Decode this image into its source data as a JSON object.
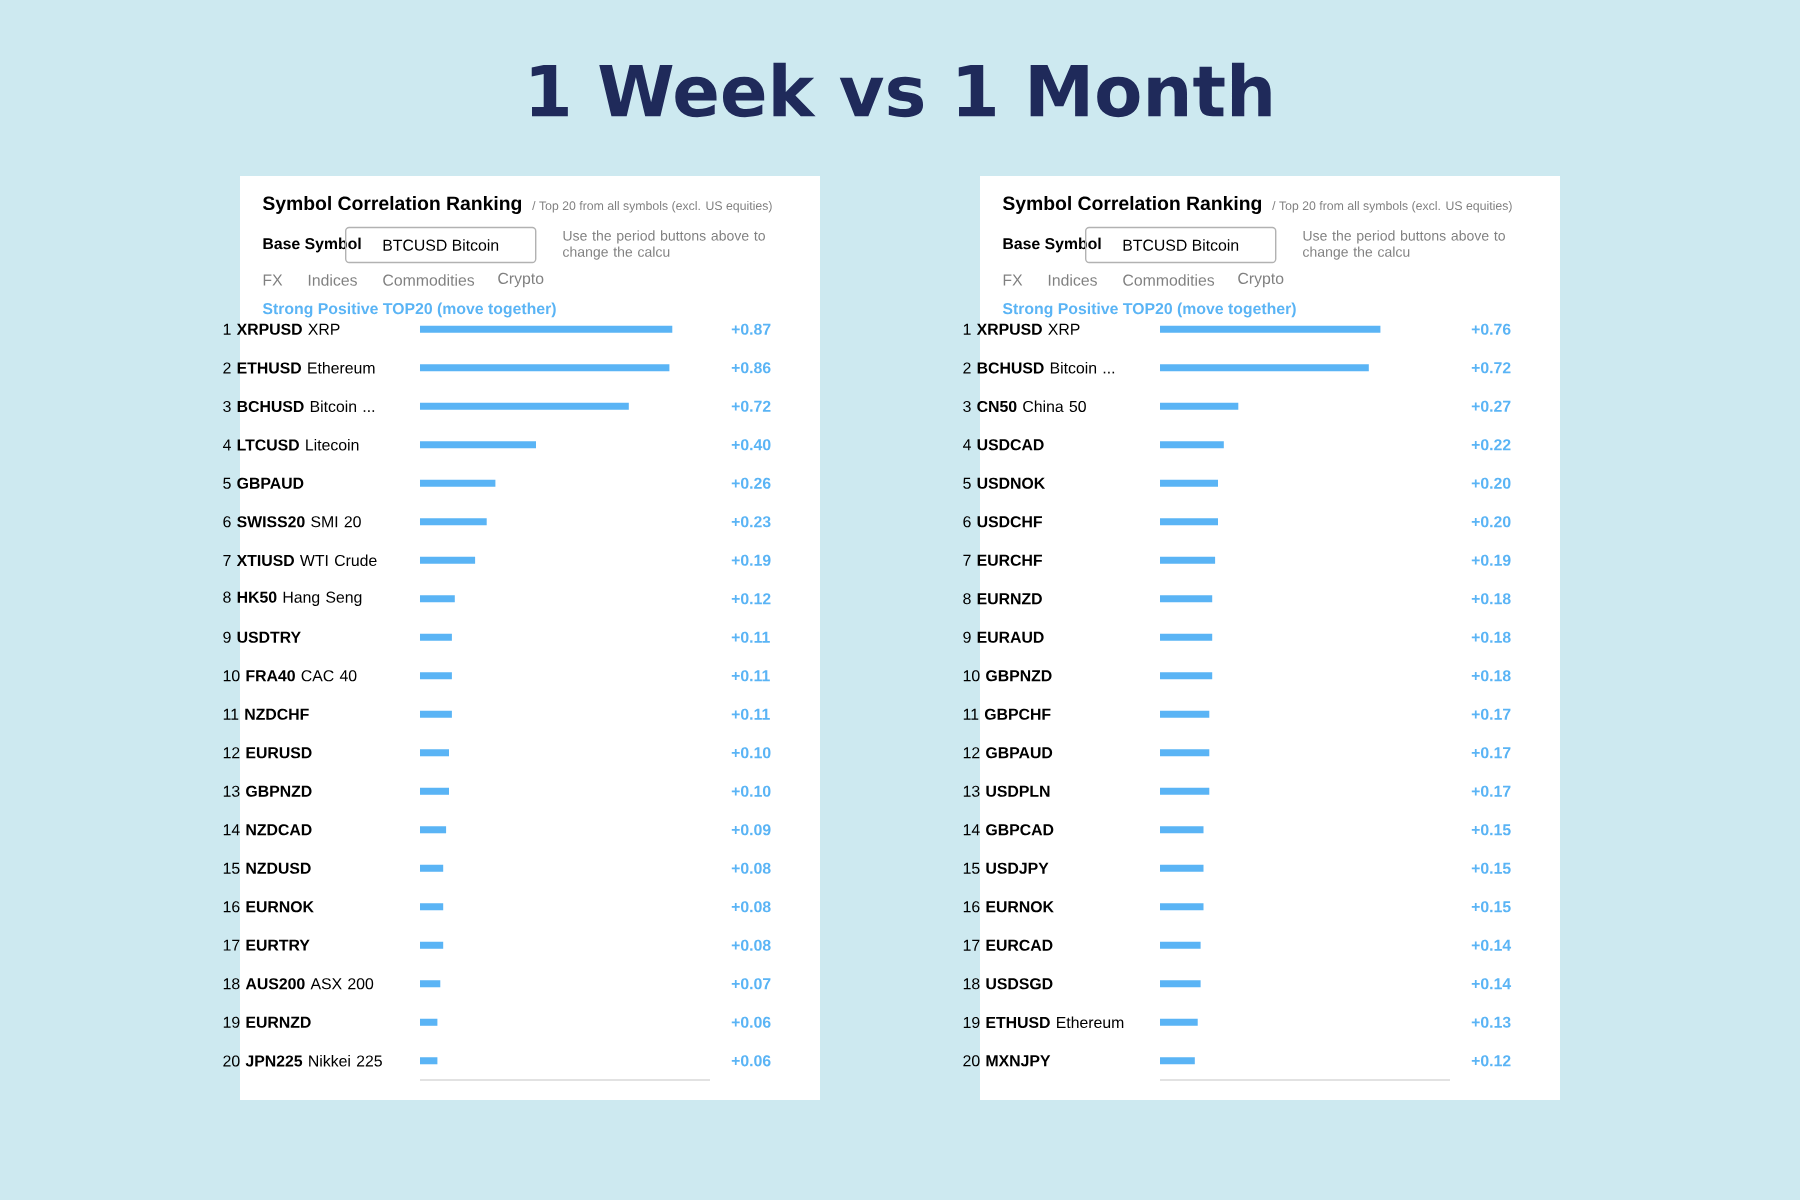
{
  "chart_data": [
    {
      "type": "bar",
      "orientation": "horizontal",
      "title": "Symbol Correlation Ranking",
      "subtitle": "/ Top 20 from all symbols (excl. US equities)",
      "color": "#5ab4f5",
      "xlim": [
        0,
        1
      ],
      "categories": [
        "1 **XRPUSD** XRP",
        "2 **ETHUSD** Ethereum",
        "3 **BCHUSD** Bitcoin ...",
        "4 **LTCUSD** Litecoin",
        "5 **GBPAUD**",
        "6 **SWISS20** SMI 20",
        "7 **XTIUSD** WTI Crude",
        "8 **HK50** Hang Seng",
        "9 **USDTRY**",
        "10 **FRA40** CAC 40",
        "11 **NZDCHF**",
        "12 **EURUSD**",
        "13 **GBPNZD**",
        "14 **NZDCAD**",
        "15 **NZDUSD**",
        "16 **EURNOK**",
        "17 **EURTRY**",
        "18 **AUS200** ASX 200",
        "19 **EURNZD**",
        "20 **JPN225** Nikkei 225"
      ],
      "values": [
        0.87,
        0.86,
        0.72,
        0.4,
        0.26,
        0.23,
        0.19,
        0.12,
        0.11,
        0.11,
        0.11,
        0.1,
        0.1,
        0.09,
        0.08,
        0.08,
        0.08,
        0.07,
        0.06,
        0.06
      ],
      "value_labels": [
        "+0.87",
        "+0.86",
        "+0.72",
        "+0.40",
        "+0.26",
        "+0.23",
        "+0.19",
        "+0.12",
        "+0.11",
        "+0.11",
        "+0.11",
        "+0.10",
        "+0.10",
        "+0.09",
        "+0.08",
        "+0.08",
        "+0.08",
        "+0.07",
        "+0.06",
        "+0.06"
      ],
      "annotations": [
        "Base Symbol",
        "BTCUSD Bitcoin",
        "Use the period buttons above to change the calcu",
        "FX",
        "Indices",
        "Commodities",
        "Crypto",
        "Strong Positive TOP20 (move together)",
        "1 Week vs 1 Month"
      ]
    },
    {
      "type": "bar",
      "orientation": "horizontal",
      "title": "Symbol Correlation Ranking",
      "subtitle": "/ Top 20 from all symbols (excl. US equities)",
      "color": "#5ab4f5",
      "xlim": [
        0,
        1
      ],
      "categories": [
        "1 **XRPUSD** XRP",
        "2 **BCHUSD** Bitcoin ...",
        "3 **CN50** China 50",
        "4 **USDCAD**",
        "5 **USDNOK**",
        "6 **USDCHF**",
        "7 **EURCHF**",
        "8 **EURNZD**",
        "9 **EURAUD**",
        "10 **GBPNZD**",
        "11 **GBPCHF**",
        "12 **GBPAUD**",
        "13 **USDPLN**",
        "14 **GBPCAD**",
        "15 **USDJPY**",
        "16 **EURNOK**",
        "17 **EURCAD**",
        "18 **USDSGD**",
        "19 **ETHUSD** Ethereum",
        "20 **MXNJPY**"
      ],
      "values": [
        0.76,
        0.72,
        0.27,
        0.22,
        0.2,
        0.2,
        0.19,
        0.18,
        0.18,
        0.18,
        0.17,
        0.17,
        0.17,
        0.15,
        0.15,
        0.15,
        0.14,
        0.14,
        0.13,
        0.12
      ],
      "value_labels": [
        "+0.76",
        "+0.72",
        "+0.27",
        "+0.22",
        "+0.20",
        "+0.20",
        "+0.19",
        "+0.18",
        "+0.18",
        "+0.18",
        "+0.17",
        "+0.17",
        "+0.17",
        "+0.15",
        "+0.15",
        "+0.15",
        "+0.14",
        "+0.14",
        "+0.13",
        "+0.12"
      ],
      "annotations": [
        "Base Symbol",
        "BTCUSD Bitcoin",
        "Use the period buttons above to change the calcu",
        "FX",
        "Indices",
        "Commodities",
        "Crypto",
        "Strong Positive TOP20 (move together)"
      ]
    }
  ]
}
